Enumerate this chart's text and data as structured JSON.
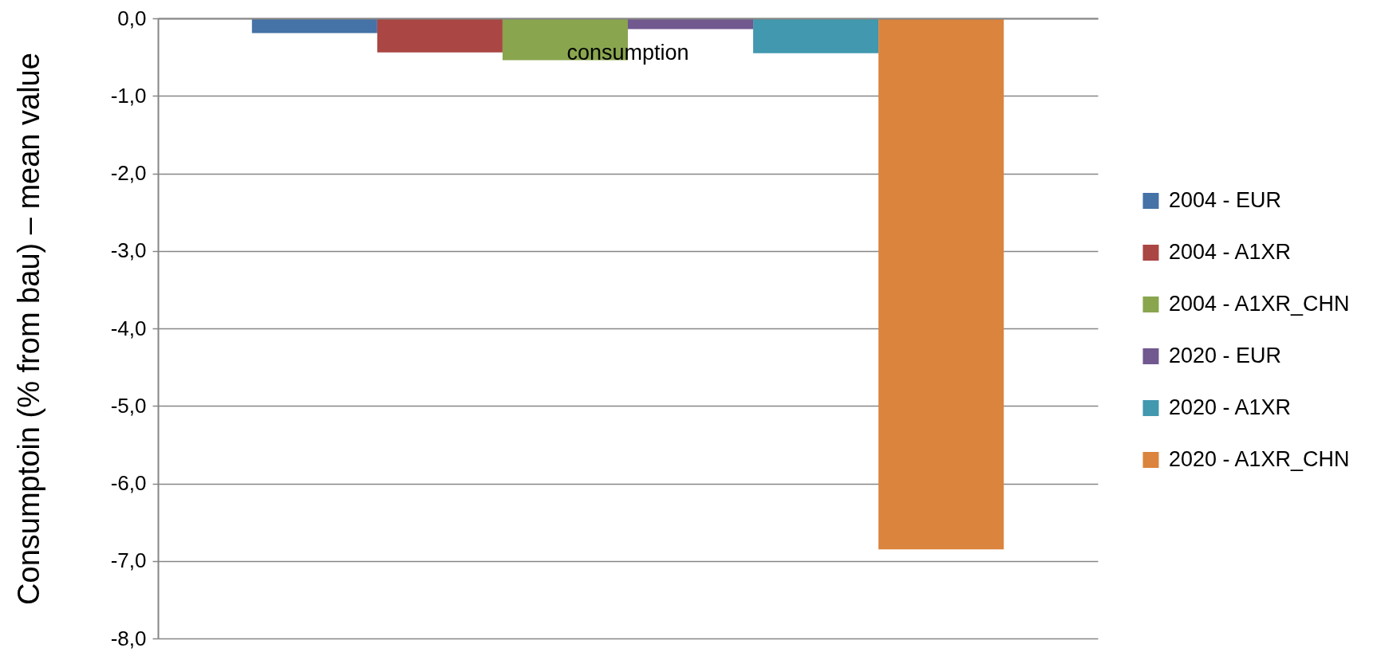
{
  "chart_data": {
    "type": "bar",
    "ylabel": "Consumptoin (% from bau) – mean value",
    "categories": [
      "consumption"
    ],
    "series": [
      {
        "name": "2004 - EUR",
        "color": "#4572a7",
        "values": [
          -0.19
        ]
      },
      {
        "name": "2004 - A1XR",
        "color": "#aa4643",
        "values": [
          -0.44
        ]
      },
      {
        "name": "2004 - A1XR_CHN",
        "color": "#89a54e",
        "values": [
          -0.54
        ]
      },
      {
        "name": "2020 - EUR",
        "color": "#71588f",
        "values": [
          -0.14
        ]
      },
      {
        "name": "2020 - A1XR",
        "color": "#4198af",
        "values": [
          -0.45
        ]
      },
      {
        "name": "2020 - A1XR_CHN",
        "color": "#db843d",
        "values": [
          -6.85
        ]
      }
    ],
    "ylim": [
      -8,
      0
    ],
    "yticks": [
      {
        "value": -8,
        "label": "-8,0"
      },
      {
        "value": -7,
        "label": "-7,0"
      },
      {
        "value": -6,
        "label": "-6,0"
      },
      {
        "value": -5,
        "label": "-5,0"
      },
      {
        "value": -4,
        "label": "-4,0"
      },
      {
        "value": -3,
        "label": "-3,0"
      },
      {
        "value": -2,
        "label": "-2,0"
      },
      {
        "value": -1,
        "label": "-1,0"
      },
      {
        "value": 0,
        "label": "0,0"
      }
    ],
    "grid": "y",
    "legend": "right"
  }
}
